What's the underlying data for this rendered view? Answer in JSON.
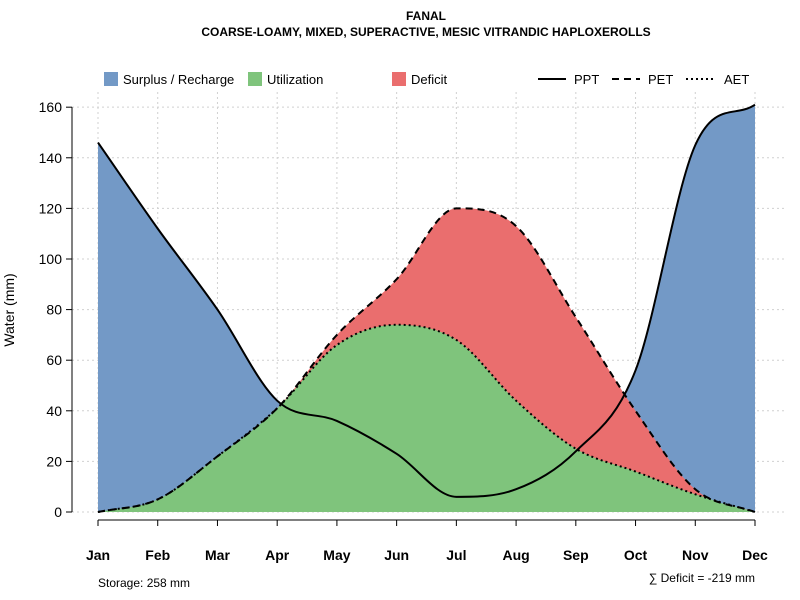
{
  "chart_data": {
    "type": "area",
    "title": "FANAL",
    "subtitle": "COARSE-LOAMY, MIXED, SUPERACTIVE, MESIC VITRANDIC HAPLOXEROLLS",
    "xlabel": "",
    "ylabel": "Water (mm)",
    "ylim": [
      0,
      166
    ],
    "yticks": [
      0,
      20,
      40,
      60,
      80,
      100,
      120,
      140,
      160
    ],
    "categories": [
      "Jan",
      "Feb",
      "Mar",
      "Apr",
      "May",
      "Jun",
      "Jul",
      "Aug",
      "Sep",
      "Oct",
      "Nov",
      "Dec"
    ],
    "grid": true,
    "series": [
      {
        "name": "PPT",
        "style": "solid",
        "values": [
          146,
          112,
          80,
          44,
          36,
          23,
          6,
          9,
          24,
          56,
          145,
          161
        ]
      },
      {
        "name": "PET",
        "style": "dashed",
        "values": [
          0,
          5,
          22,
          41,
          70,
          92,
          120,
          113,
          77,
          40,
          9,
          0
        ]
      },
      {
        "name": "AET",
        "style": "dotted",
        "values": [
          0,
          5,
          22,
          41,
          66,
          74,
          68,
          44,
          25,
          16,
          7,
          0
        ]
      }
    ],
    "legend": [
      {
        "label": "Surplus / Recharge",
        "color": "#7399c6"
      },
      {
        "label": "Utilization",
        "color": "#7fc47c"
      },
      {
        "label": "Deficit",
        "color": "#ea6e6e"
      },
      {
        "label": "PPT",
        "line": "solid"
      },
      {
        "label": "PET",
        "line": "dashed"
      },
      {
        "label": "AET",
        "line": "dotted"
      }
    ],
    "legend_position": "top",
    "annotations": {
      "storage": "Storage: 258 mm",
      "deficit": "∑ Deficit = -219 mm"
    }
  }
}
